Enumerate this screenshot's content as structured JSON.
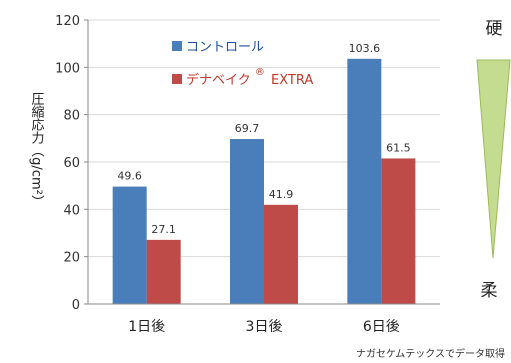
{
  "chart_data": {
    "type": "bar",
    "ylabel": "圧縮応力（g/cm²）",
    "ylim": [
      0,
      120
    ],
    "yticks": [
      "0",
      "20",
      "40",
      "60",
      "80",
      "100",
      "120"
    ],
    "ytick_values": [
      0,
      20,
      40,
      60,
      80,
      100,
      120
    ],
    "grid": true,
    "legend_placement": "top-left",
    "categories": [
      "1日後",
      "3日後",
      "6日後"
    ],
    "series": [
      {
        "name": "コントロール",
        "values": [
          49.6,
          69.7,
          103.6
        ],
        "labels": [
          "49.6",
          "69.7",
          "103.6"
        ],
        "color": "#4a7ebb"
      },
      {
        "name": "デナベイク®EXTRA",
        "name_main": "デナベイク",
        "name_sup": "®",
        "name_tail": "EXTRA",
        "values": [
          27.1,
          41.9,
          61.5
        ],
        "labels": [
          "27.1",
          "41.9",
          "61.5"
        ],
        "color": "#be4b48"
      }
    ]
  },
  "indicator": {
    "hard_label": "硬",
    "soft_label": "柔",
    "color": "#c4dc8f",
    "border_color": "#9bbb59"
  },
  "source_note": "ナガセケムテックスでデータ取得",
  "colors": {
    "legend_text_1": "#1f4f9a",
    "legend_text_2": "#c0392b",
    "grid": "#d9d9d9",
    "axis": "#888888"
  }
}
